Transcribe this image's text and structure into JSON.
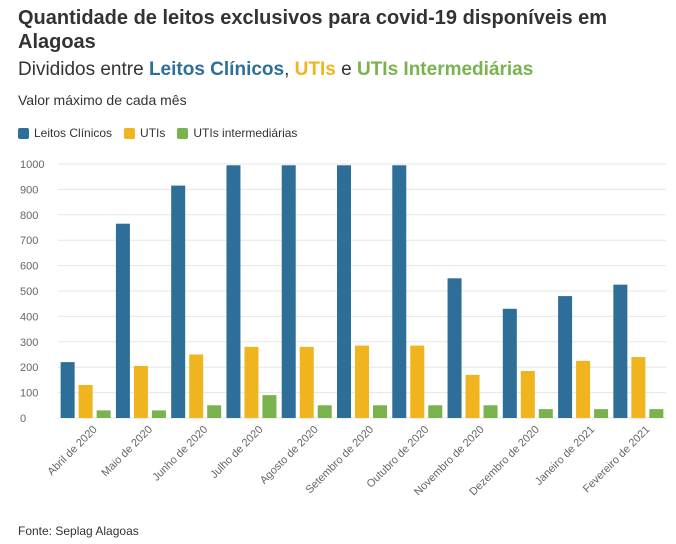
{
  "header": {
    "title": "Quantidade de leitos exclusivos para covid-19 disponíveis em Alagoas",
    "subtitle_prefix": "Divididos entre ",
    "subtitle_sep1": ", ",
    "subtitle_sep2": " e ",
    "note": "Valor máximo de cada mês"
  },
  "footer": {
    "source": "Fonte: Seplag Alagoas"
  },
  "colors": {
    "clinicos": "#2e6f9a",
    "utis": "#f0b41e",
    "intermediarias": "#7ab24e"
  },
  "chart_data": {
    "type": "bar",
    "categories": [
      "Abril de 2020",
      "Maio de 2020",
      "Junho de 2020",
      "Julho de 2020",
      "Agosto de 2020",
      "Setembro de 2020",
      "Outubro de 2020",
      "Novembro de 2020",
      "Dezembro de 2020",
      "Janeiro de 2021",
      "Fevereiro de 2021"
    ],
    "series": [
      {
        "name": "Leitos Clínicos",
        "values": [
          220,
          765,
          915,
          995,
          995,
          995,
          995,
          550,
          430,
          480,
          525
        ]
      },
      {
        "name": "UTIs",
        "values": [
          130,
          205,
          250,
          280,
          280,
          285,
          285,
          170,
          185,
          225,
          240
        ]
      },
      {
        "name": "UTIs intermediárias",
        "values": [
          30,
          30,
          50,
          90,
          50,
          50,
          50,
          50,
          35,
          35,
          35
        ]
      }
    ],
    "subtitle_labels": [
      "Leitos Clínicos",
      "UTIs",
      "UTIs Intermediárias"
    ],
    "yticks": [
      0,
      100,
      200,
      300,
      400,
      500,
      600,
      700,
      800,
      900,
      1000
    ],
    "ylim": [
      0,
      1000
    ],
    "grid": true,
    "legend": "top-left"
  }
}
